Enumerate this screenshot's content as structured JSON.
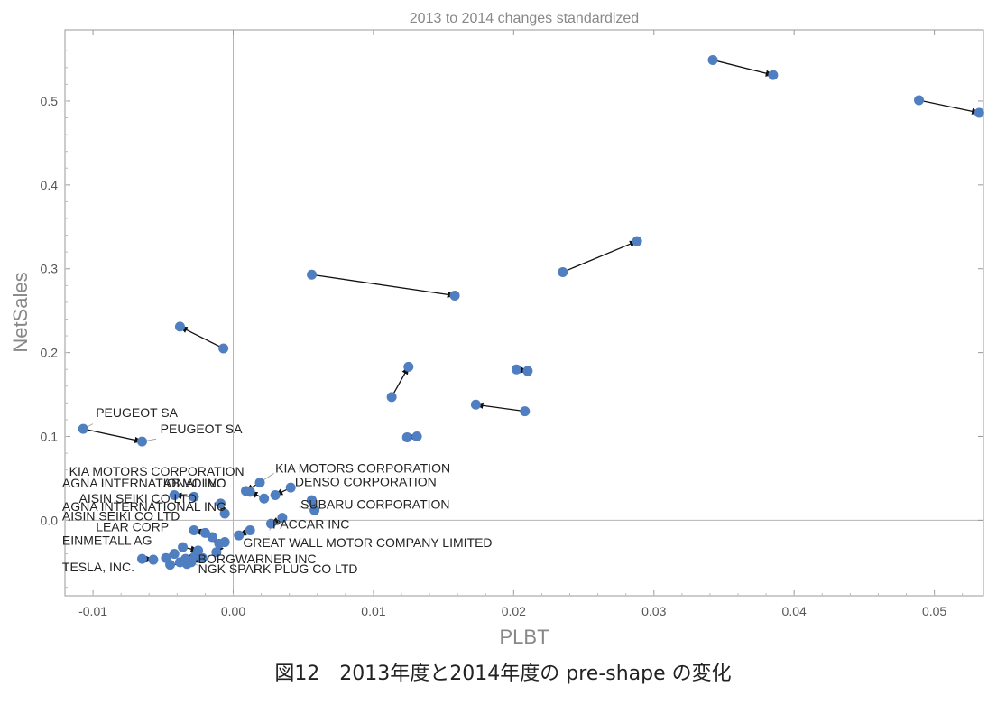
{
  "caption": "図12　2013年度と2014年度の pre-shape の変化",
  "chart_data": {
    "type": "scatter",
    "title": "2013 to 2014 changes standardized",
    "xlabel": "PLBT",
    "ylabel": "NetSales",
    "xlim": [
      -0.012,
      0.0535
    ],
    "ylim": [
      -0.09,
      0.585
    ],
    "xticks": [
      -0.01,
      0.0,
      0.01,
      0.02,
      0.03,
      0.04,
      0.05
    ],
    "xtick_labels": [
      "-0.01",
      "0.00",
      "0.01",
      "0.02",
      "0.03",
      "0.04",
      "0.05"
    ],
    "yticks": [
      0.0,
      0.1,
      0.2,
      0.3,
      0.4,
      0.5
    ],
    "ytick_labels": [
      "0.0",
      "0.1",
      "0.2",
      "0.3",
      "0.4",
      "0.5"
    ],
    "grid": false,
    "zero_lines": true,
    "point_color": "#4f7fc0",
    "arrow_color": "#111111",
    "arrows": [
      {
        "from": [
          0.0342,
          0.549
        ],
        "to": [
          0.0385,
          0.531
        ],
        "label": ""
      },
      {
        "from": [
          0.0489,
          0.501
        ],
        "to": [
          0.0532,
          0.486
        ],
        "label": ""
      },
      {
        "from": [
          0.0235,
          0.296
        ],
        "to": [
          0.0288,
          0.333
        ],
        "label": ""
      },
      {
        "from": [
          0.0056,
          0.293
        ],
        "to": [
          0.0158,
          0.268
        ],
        "label": ""
      },
      {
        "from": [
          -0.0007,
          0.205
        ],
        "to": [
          -0.0038,
          0.231
        ],
        "label": ""
      },
      {
        "from": [
          0.0113,
          0.147
        ],
        "to": [
          0.0125,
          0.183
        ],
        "label": ""
      },
      {
        "from": [
          0.0202,
          0.18
        ],
        "to": [
          0.021,
          0.178
        ],
        "label": ""
      },
      {
        "from": [
          0.0208,
          0.13
        ],
        "to": [
          0.0173,
          0.138
        ],
        "label": ""
      },
      {
        "from": [
          0.0131,
          0.1
        ],
        "to": [
          0.0124,
          0.099
        ],
        "label": ""
      },
      {
        "from": [
          -0.0107,
          0.109
        ],
        "to": [
          -0.0065,
          0.094
        ],
        "label": "PEUGEOT SA"
      },
      {
        "from": [
          0.0019,
          0.045
        ],
        "to": [
          0.0009,
          0.035
        ],
        "label": "KIA MOTORS CORPORATION"
      },
      {
        "from": [
          0.0041,
          0.039
        ],
        "to": [
          0.003,
          0.03
        ],
        "label": "DENSO CORPORATION"
      },
      {
        "from": [
          0.0022,
          0.026
        ],
        "to": [
          0.0012,
          0.034
        ],
        "label": "AB VOLVO"
      },
      {
        "from": [
          0.0056,
          0.024
        ],
        "to": [
          0.0058,
          0.012
        ],
        "label": "SUBARU CORPORATION"
      },
      {
        "from": [
          -0.0028,
          0.028
        ],
        "to": [
          -0.0042,
          0.03
        ],
        "label": "MAGNA INTERNATIONAL INC"
      },
      {
        "from": [
          -0.0006,
          0.008
        ],
        "to": [
          -0.0009,
          0.02
        ],
        "label": "AISIN SEIKI CO LTD"
      },
      {
        "from": [
          0.0035,
          0.003
        ],
        "to": [
          0.0027,
          -0.004
        ],
        "label": "PACCAR INC"
      },
      {
        "from": [
          -0.002,
          -0.015
        ],
        "to": [
          -0.0028,
          -0.012
        ],
        "label": "LEAR CORP"
      },
      {
        "from": [
          0.0012,
          -0.012
        ],
        "to": [
          0.0004,
          -0.018
        ],
        "label": ""
      },
      {
        "from": [
          -0.0015,
          -0.02
        ],
        "to": [
          -0.001,
          -0.028
        ],
        "label": "GREAT WALL MOTOR COMPANY LIMITED"
      },
      {
        "from": [
          -0.0036,
          -0.032
        ],
        "to": [
          -0.0025,
          -0.036
        ],
        "label": "RHEINMETALL AG"
      },
      {
        "from": [
          -0.0006,
          -0.026
        ],
        "to": [
          -0.0012,
          -0.038
        ],
        "label": ""
      },
      {
        "from": [
          -0.0022,
          -0.045
        ],
        "to": [
          -0.003,
          -0.05
        ],
        "label": "BORGWARNER INC"
      },
      {
        "from": [
          -0.0038,
          -0.05
        ],
        "to": [
          -0.003,
          -0.048
        ],
        "label": "NGK SPARK PLUG CO LTD"
      },
      {
        "from": [
          -0.0065,
          -0.046
        ],
        "to": [
          -0.0057,
          -0.047
        ],
        "label": "TESLA, INC."
      },
      {
        "from": [
          -0.0045,
          -0.053
        ],
        "to": [
          -0.0033,
          -0.052
        ],
        "label": ""
      },
      {
        "from": [
          -0.0027,
          -0.042
        ],
        "to": [
          -0.0034,
          -0.046
        ],
        "label": ""
      },
      {
        "from": [
          -0.0042,
          -0.04
        ],
        "to": [
          -0.0048,
          -0.045
        ],
        "label": ""
      }
    ],
    "annotations": [
      {
        "text": "PEUGEOT SA",
        "x": -0.0098,
        "y": 0.123
      },
      {
        "text": "PEUGEOT SA",
        "x": -0.0052,
        "y": 0.104
      },
      {
        "text": "KIA MOTORS CORPORATION",
        "x": 0.003,
        "y": 0.057
      },
      {
        "text": "KIA MOTORS CORPORATION",
        "x": -0.0117,
        "y": 0.053
      },
      {
        "text": "DENSO CORPORATION",
        "x": 0.0044,
        "y": 0.041
      },
      {
        "text": "AB VOLVO",
        "x": -0.005,
        "y": 0.039
      },
      {
        "text": "AGNA INTERNATIONAL INC",
        "x": -0.0122,
        "y": 0.039
      },
      {
        "text": "AISIN SEIKI CO LTD",
        "x": -0.011,
        "y": 0.021
      },
      {
        "text": "SUBARU CORPORATION",
        "x": 0.0048,
        "y": 0.014
      },
      {
        "text": "AGNA INTERNATIONAL INC",
        "x": -0.0122,
        "y": 0.011
      },
      {
        "text": "AISIN SEIKI CO LTD",
        "x": -0.0122,
        "y": 0.0
      },
      {
        "text": "PACCAR INC",
        "x": 0.0028,
        "y": -0.01
      },
      {
        "text": "LEAR CORP",
        "x": -0.0098,
        "y": -0.013
      },
      {
        "text": "EINMETALL AG",
        "x": -0.0122,
        "y": -0.029
      },
      {
        "text": "GREAT WALL MOTOR COMPANY LIMITED",
        "x": 0.0007,
        "y": -0.032
      },
      {
        "text": "BORGWARNER INC",
        "x": -0.0025,
        "y": -0.051
      },
      {
        "text": "TESLA, INC.",
        "x": -0.0122,
        "y": -0.061
      },
      {
        "text": "NGK SPARK PLUG CO LTD",
        "x": -0.0025,
        "y": -0.063
      }
    ]
  }
}
